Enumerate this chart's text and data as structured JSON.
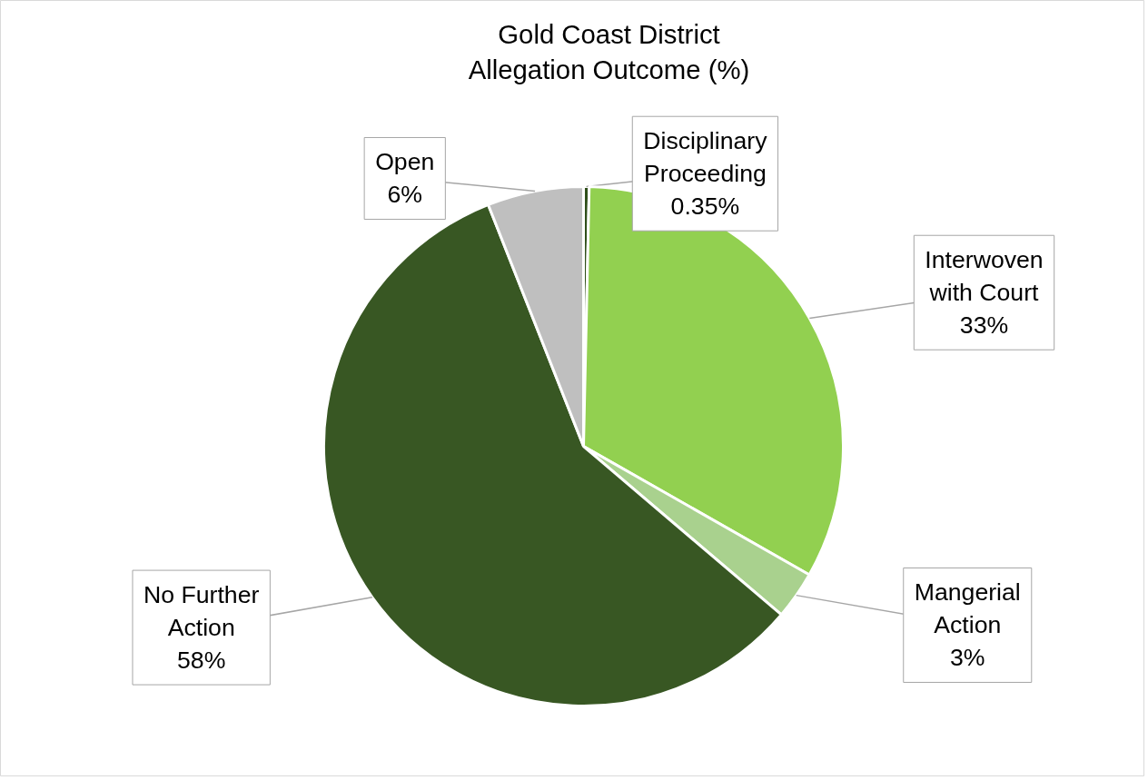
{
  "chart_data": {
    "type": "pie",
    "title": "Gold Coast District\nAllegation Outcome (%)",
    "categories": [
      "Disciplinary Proceeding",
      "Interwoven with Court",
      "Mangerial Action",
      "No Further Action",
      "Open"
    ],
    "values": [
      0.35,
      33,
      3,
      58,
      6
    ],
    "colors": [
      "#2f4f1a",
      "#92d050",
      "#a9d18e",
      "#385723",
      "#bfbfbf"
    ],
    "value_labels": [
      "0.35%",
      "33%",
      "3%",
      "58%",
      "6%"
    ]
  }
}
